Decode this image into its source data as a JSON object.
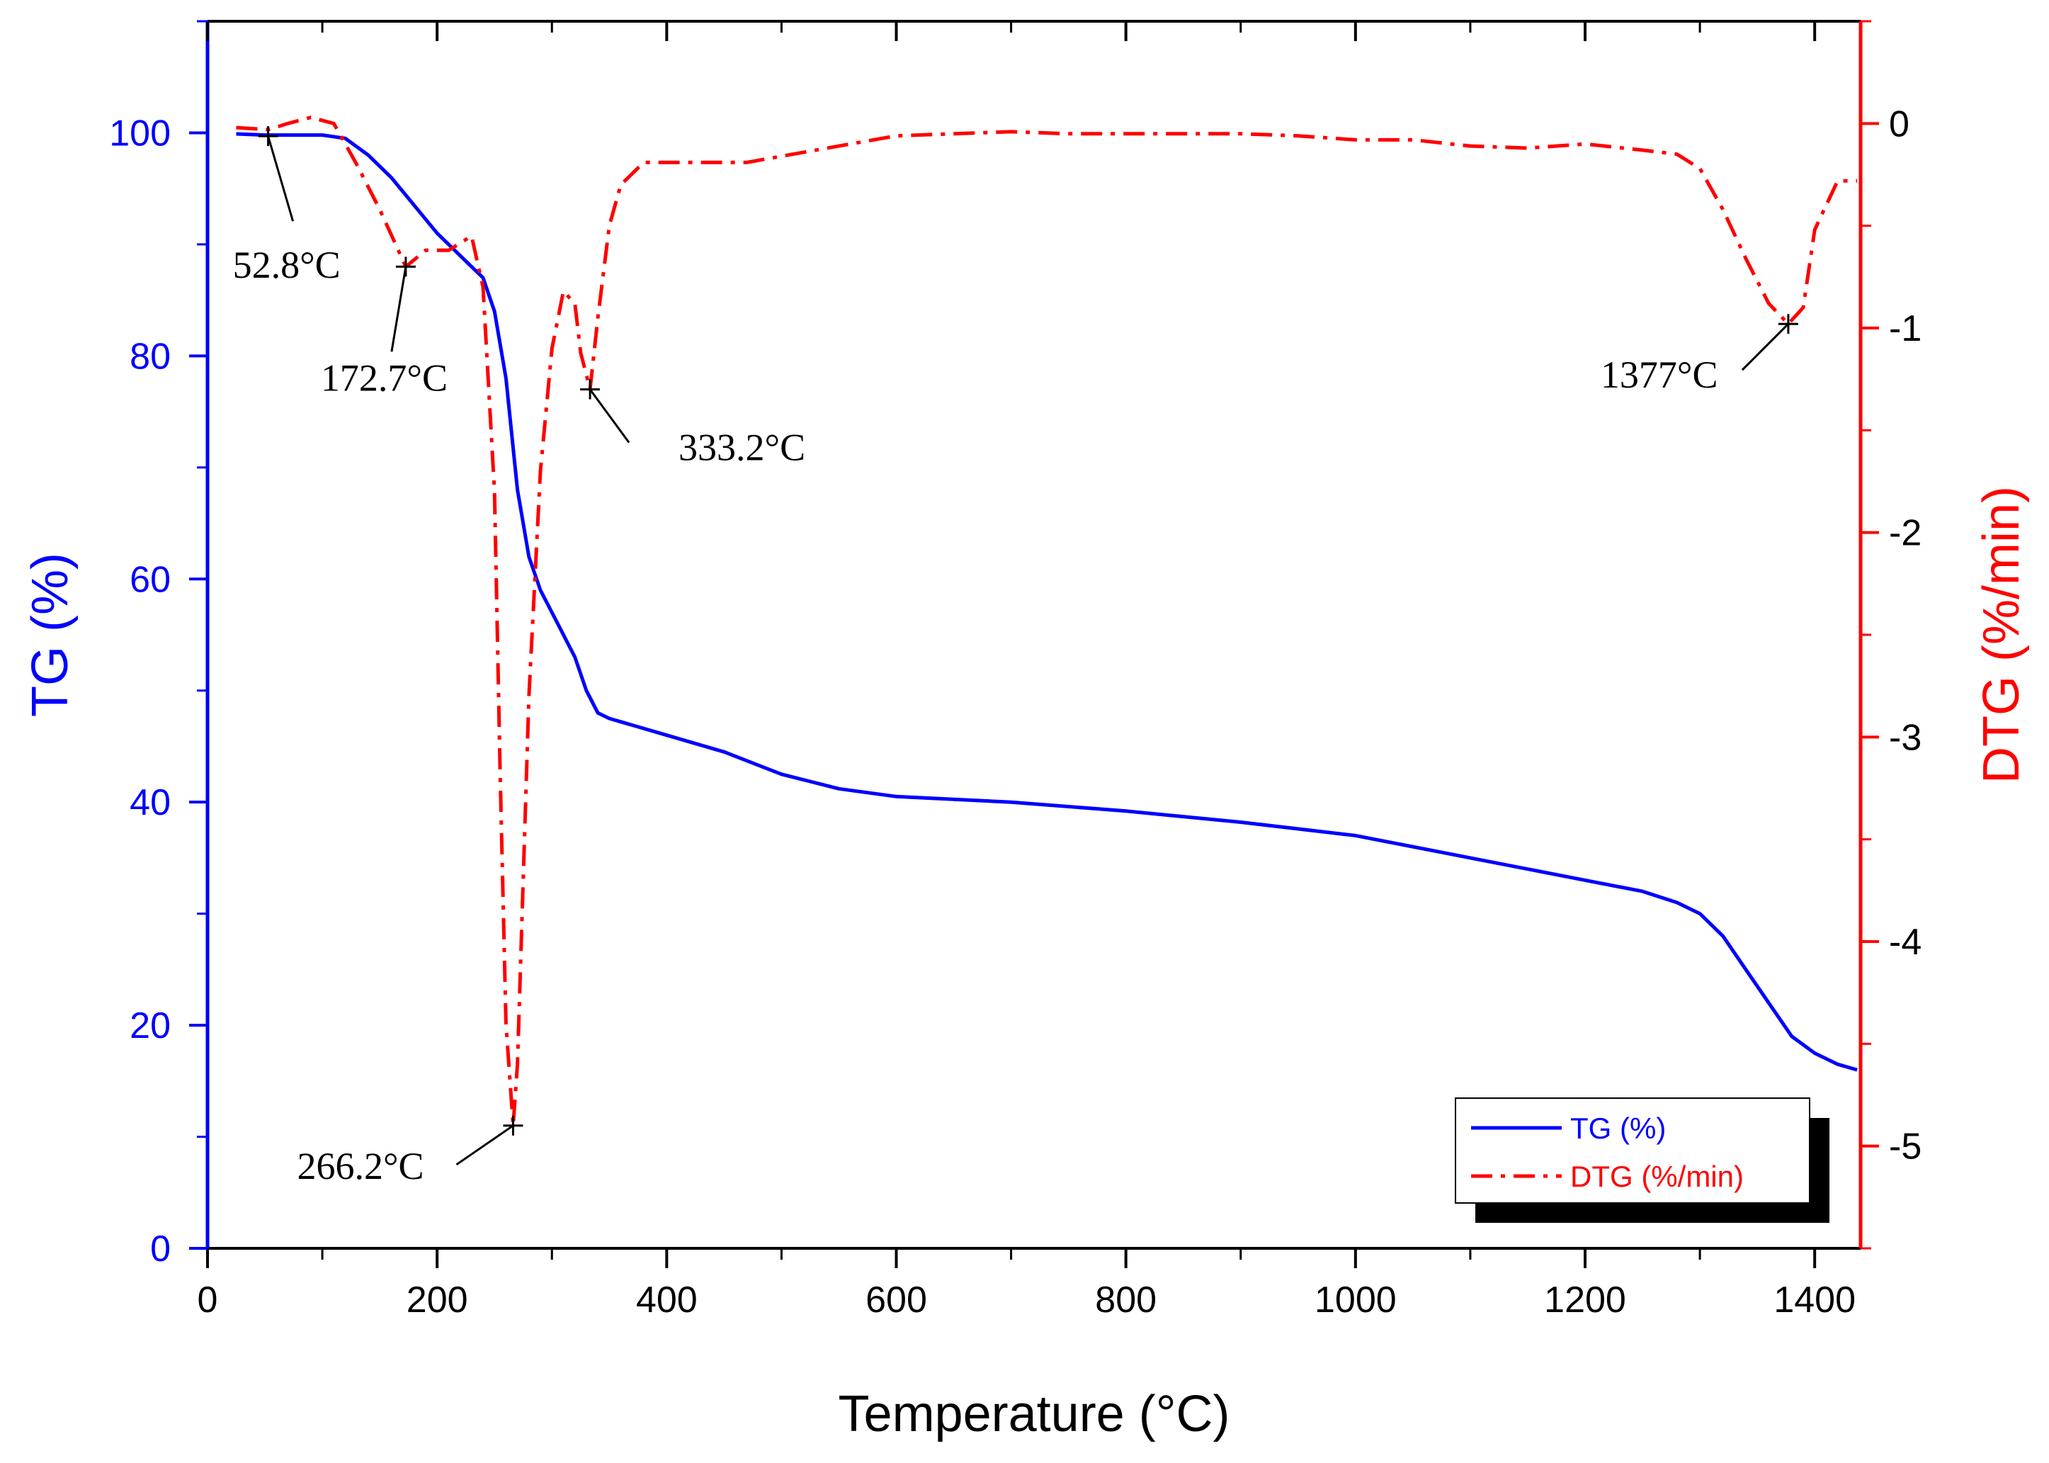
{
  "chart_data": {
    "type": "line",
    "title": "",
    "xlabel": "Temperature (°C)",
    "ylabel": "TG (%)",
    "y2label": "DTG (%/min)",
    "xlim": [
      0,
      1440
    ],
    "ylim": [
      0,
      110
    ],
    "y2lim": [
      -5.5,
      0.5
    ],
    "x_ticks": [
      0,
      200,
      400,
      600,
      800,
      1000,
      1200,
      1400
    ],
    "x_tick_labels": [
      "0",
      "200",
      "400",
      "600",
      "800",
      "1000",
      "1200",
      "1400"
    ],
    "y_ticks": [
      0,
      20,
      40,
      60,
      80,
      100
    ],
    "y_tick_labels": [
      "0",
      "20",
      "40",
      "60",
      "80",
      "100"
    ],
    "y2_ticks": [
      -5,
      -4,
      -3,
      -2,
      -1,
      0
    ],
    "y2_tick_labels": [
      "-5",
      "-4",
      "-3",
      "-2",
      "-1",
      "0"
    ],
    "grid": false,
    "legend_position": "bottom-right",
    "colors": {
      "tg": "#0000ff",
      "dtg": "#ff0000",
      "annotation": "#000000"
    },
    "series": [
      {
        "name": "TG (%)",
        "axis": "left",
        "style": "solid",
        "x": [
          25,
          50,
          100,
          120,
          140,
          160,
          180,
          200,
          220,
          240,
          250,
          260,
          266,
          270,
          280,
          290,
          300,
          320,
          330,
          340,
          350,
          360,
          400,
          450,
          500,
          550,
          600,
          700,
          800,
          900,
          1000,
          1100,
          1200,
          1250,
          1280,
          1300,
          1320,
          1340,
          1360,
          1380,
          1400,
          1420,
          1437
        ],
        "y": [
          99.9,
          99.8,
          99.8,
          99.5,
          98,
          96,
          93.5,
          91,
          89,
          87,
          84,
          78,
          72,
          68,
          62,
          59,
          57,
          53,
          50,
          48,
          47.5,
          47.2,
          46,
          44.5,
          42.5,
          41.2,
          40.5,
          40,
          39.2,
          38.2,
          37,
          35,
          33,
          32,
          31,
          30,
          28,
          25,
          22,
          19,
          17.5,
          16.5,
          16
        ]
      },
      {
        "name": "DTG (%/min)",
        "axis": "right",
        "style": "dash-dot",
        "x": [
          25,
          52.8,
          70,
          90,
          110,
          130,
          150,
          172.7,
          190,
          210,
          230,
          240,
          250,
          255,
          260,
          266.2,
          270,
          280,
          290,
          300,
          310,
          320,
          325,
          333.2,
          340,
          350,
          360,
          380,
          420,
          470,
          500,
          550,
          600,
          650,
          700,
          750,
          800,
          850,
          900,
          950,
          1000,
          1050,
          1100,
          1150,
          1200,
          1250,
          1280,
          1300,
          1320,
          1340,
          1360,
          1377,
          1390,
          1400,
          1420,
          1437
        ],
        "y": [
          -0.02,
          -0.03,
          0.0,
          0.03,
          0.0,
          -0.2,
          -0.42,
          -0.7,
          -0.62,
          -0.62,
          -0.55,
          -0.8,
          -1.8,
          -3.2,
          -4.4,
          -4.9,
          -4.6,
          -2.8,
          -1.7,
          -1.1,
          -0.82,
          -0.88,
          -1.12,
          -1.3,
          -0.95,
          -0.5,
          -0.3,
          -0.19,
          -0.19,
          -0.19,
          -0.16,
          -0.11,
          -0.06,
          -0.05,
          -0.04,
          -0.05,
          -0.05,
          -0.05,
          -0.05,
          -0.06,
          -0.08,
          -0.08,
          -0.11,
          -0.12,
          -0.1,
          -0.13,
          -0.15,
          -0.22,
          -0.42,
          -0.66,
          -0.88,
          -0.98,
          -0.9,
          -0.52,
          -0.28,
          -0.28
        ]
      }
    ],
    "annotations": [
      {
        "label": "52.8°C",
        "x": 52.8,
        "axis": "left",
        "y": 99.7
      },
      {
        "label": "172.7°C",
        "x": 172.7,
        "axis": "right",
        "y": -0.7
      },
      {
        "label": "266.2°C",
        "x": 266.2,
        "axis": "right",
        "y": -4.9
      },
      {
        "label": "333.2°C",
        "x": 333.2,
        "axis": "right",
        "y": -1.3
      },
      {
        "label": "1377°C",
        "x": 1377,
        "axis": "right",
        "y": -0.98
      }
    ],
    "legend": [
      {
        "label": "TG (%)",
        "series": 0
      },
      {
        "label": "DTG (%/min)",
        "series": 1
      }
    ]
  }
}
